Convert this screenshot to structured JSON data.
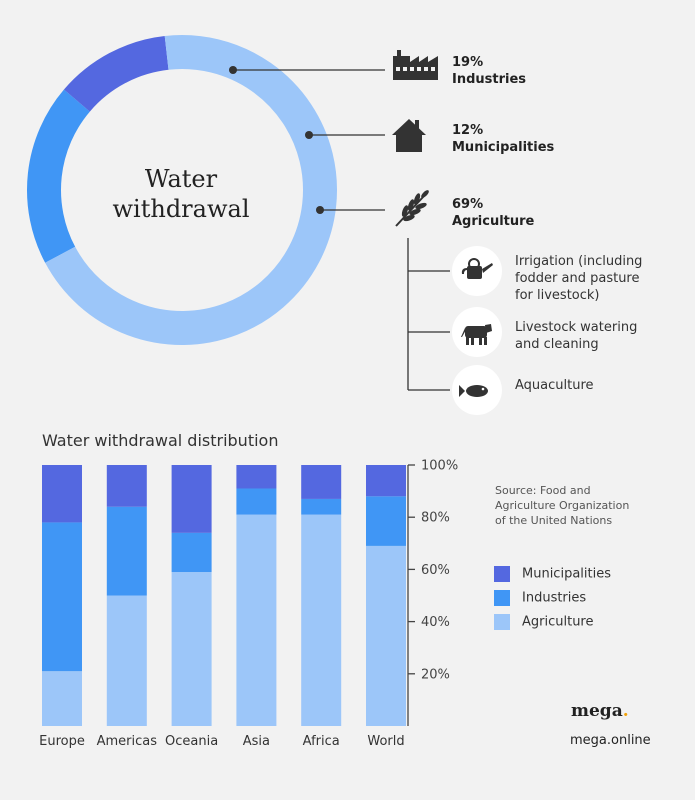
{
  "donut": {
    "title_line1": "Water",
    "title_line2": "withdrawal",
    "segments": [
      {
        "label": "Industries",
        "value": 19,
        "percent_text": "19%",
        "color": "#4096f5"
      },
      {
        "label": "Municipalities",
        "value": 12,
        "percent_text": "12%",
        "color": "#5468e0"
      },
      {
        "label": "Agriculture",
        "value": 69,
        "percent_text": "69%",
        "color": "#9cc6f9"
      }
    ],
    "icons": [
      "factory-icon",
      "house-icon",
      "wheat-icon"
    ]
  },
  "agriculture_uses": [
    {
      "icon": "watering-can-icon",
      "lines": [
        "Irrigation (including",
        "fodder and pasture",
        "for livestock)"
      ]
    },
    {
      "icon": "cow-icon",
      "lines": [
        "Livestock watering",
        "and cleaning"
      ]
    },
    {
      "icon": "fish-icon",
      "lines": [
        "Aquaculture"
      ]
    }
  ],
  "chart_data": {
    "type": "bar",
    "stacked": true,
    "title": "Water withdrawal distribution",
    "categories": [
      "Europe",
      "Americas",
      "Oceania",
      "Asia",
      "Africa",
      "World"
    ],
    "series": [
      {
        "name": "Agriculture",
        "values": [
          21,
          50,
          59,
          81,
          81,
          69
        ],
        "color": "#9cc6f9"
      },
      {
        "name": "Industries",
        "values": [
          57,
          34,
          15,
          10,
          6,
          19
        ],
        "color": "#4096f5"
      },
      {
        "name": "Municipalities",
        "values": [
          22,
          16,
          26,
          9,
          13,
          12
        ],
        "color": "#5468e0"
      }
    ],
    "ylim": [
      0,
      100
    ],
    "yticks": [
      "20%",
      "40%",
      "60%",
      "80%",
      "100%"
    ],
    "ytick_values": [
      20,
      40,
      60,
      80,
      100
    ],
    "legend": [
      "Municipalities",
      "Industries",
      "Agriculture"
    ],
    "legend_placement": "right"
  },
  "source": {
    "lines": [
      "Source: Food and",
      "Agriculture Organization",
      "of the United Nations"
    ]
  },
  "brand": {
    "logo": "mega",
    "dot": ".",
    "site": "mega.online"
  }
}
